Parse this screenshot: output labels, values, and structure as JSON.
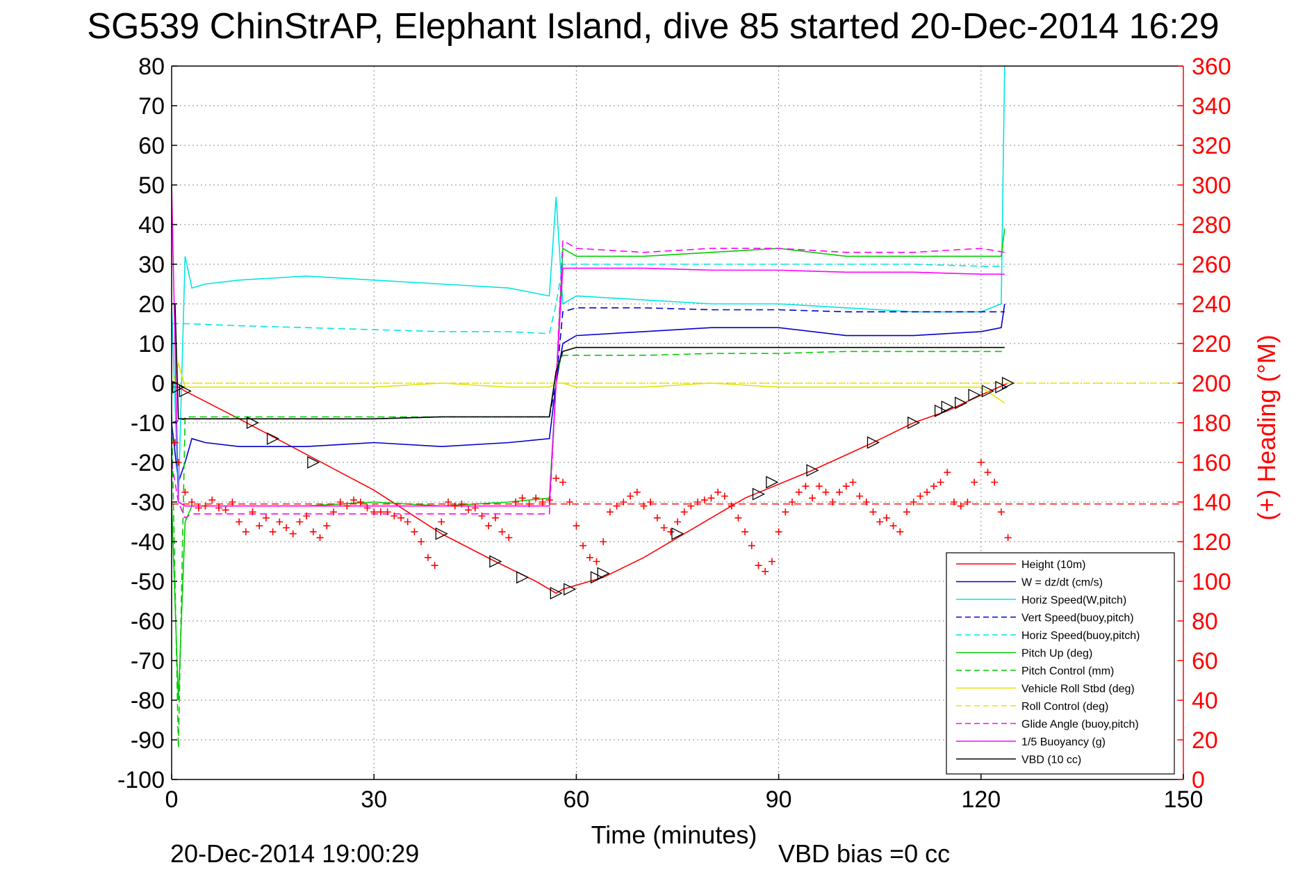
{
  "chart_data": {
    "type": "line",
    "title": "SG539 ChinStrAP, Elephant Island, dive 85 started 20-Dec-2014 16:29",
    "xlabel": "Time (minutes)",
    "ylabel_right": "(+) Heading (°M)",
    "footer_left": "20-Dec-2014 19:00:29",
    "footer_right": "VBD bias =0 cc",
    "xlim": [
      0,
      150
    ],
    "ylim_left": [
      -100,
      80
    ],
    "ylim_right": [
      0,
      360
    ],
    "x_ticks": [
      "0",
      "30",
      "60",
      "90",
      "120",
      "150"
    ],
    "y_ticks_left": [
      "80",
      "70",
      "60",
      "50",
      "40",
      "30",
      "20",
      "10",
      "0",
      "-10",
      "-20",
      "-30",
      "-40",
      "-50",
      "-60",
      "-70",
      "-80",
      "-90",
      "-100"
    ],
    "y_ticks_right": [
      "360",
      "340",
      "320",
      "300",
      "280",
      "260",
      "240",
      "220",
      "200",
      "180",
      "160",
      "140",
      "120",
      "100",
      "80",
      "60",
      "40",
      "20",
      "0"
    ],
    "grid": true,
    "legend_position": "bottom-right",
    "colors": {
      "axis": "#000000",
      "heading_axis": "#ff0000",
      "grid": "#888888"
    },
    "series": [
      {
        "name": "Height (10m)",
        "color": "#ff0000",
        "dash": "solid",
        "x": [
          0,
          1,
          2,
          10,
          20,
          30,
          40,
          48,
          54,
          57,
          58,
          64,
          70,
          76,
          85,
          95,
          104,
          110,
          115,
          120,
          124
        ],
        "y": [
          -1,
          -1,
          -2,
          -9,
          -18,
          -27,
          -38,
          -45,
          -50,
          -53,
          -52,
          -49,
          -44,
          -38,
          -29,
          -22,
          -15,
          -10,
          -7,
          -3,
          0
        ]
      },
      {
        "name": "W = dz/dt (cm/s)",
        "color": "#0000cc",
        "dash": "solid",
        "x": [
          0,
          1,
          2,
          3,
          5,
          10,
          20,
          30,
          40,
          50,
          56,
          57,
          58,
          60,
          70,
          80,
          90,
          100,
          110,
          120,
          123,
          123.5
        ],
        "y": [
          -10,
          -25,
          -20,
          -14,
          -15,
          -16,
          -16,
          -15,
          -16,
          -15,
          -14,
          0,
          10,
          12,
          13,
          14,
          14,
          12,
          12,
          13,
          14,
          20
        ]
      },
      {
        "name": "Horiz Speed(W,pitch)",
        "color": "#00e5e5",
        "dash": "solid",
        "x": [
          0,
          1,
          2,
          3,
          5,
          10,
          20,
          30,
          40,
          50,
          56,
          57,
          58,
          60,
          70,
          80,
          90,
          100,
          110,
          120,
          123,
          123.5
        ],
        "y": [
          20,
          -30,
          32,
          24,
          25,
          26,
          27,
          26,
          25,
          24,
          22,
          47,
          20,
          22,
          21,
          20,
          20,
          19,
          18,
          18,
          20,
          80
        ]
      },
      {
        "name": "Vert Speed(buoy,pitch)",
        "color": "#0000cc",
        "dash": "dashed",
        "x": [
          0,
          2,
          10,
          20,
          30,
          40,
          50,
          56,
          57,
          58,
          60,
          70,
          80,
          90,
          100,
          110,
          120,
          123.5
        ],
        "y": [
          -10,
          -9,
          -9,
          -9,
          -9,
          -8.5,
          -8.5,
          -8.5,
          0,
          18,
          19,
          19,
          18.5,
          18.5,
          18,
          18,
          18,
          18
        ]
      },
      {
        "name": "Horiz Speed(buoy,pitch)",
        "color": "#00e5e5",
        "dash": "dashed",
        "x": [
          0,
          2,
          10,
          20,
          30,
          40,
          50,
          56,
          57,
          58,
          60,
          70,
          80,
          90,
          100,
          110,
          120,
          123.5
        ],
        "y": [
          15,
          15,
          14.5,
          14,
          13.5,
          13,
          13,
          12.5,
          20,
          30,
          30,
          30,
          30,
          30,
          30,
          30,
          29.5,
          29.5
        ]
      },
      {
        "name": "Pitch Up (deg)",
        "color": "#00cc00",
        "dash": "solid",
        "x": [
          0,
          1,
          2,
          3,
          5,
          10,
          20,
          30,
          40,
          50,
          56,
          57,
          58,
          60,
          70,
          80,
          90,
          100,
          110,
          120,
          123,
          123.5
        ],
        "y": [
          -30,
          -80,
          -35,
          -31,
          -31,
          -31,
          -31,
          -30,
          -31,
          -30,
          -29,
          0,
          34,
          32,
          32,
          33,
          34,
          32,
          32,
          32,
          32,
          39
        ]
      },
      {
        "name": "Pitch Control (mm)",
        "color": "#00cc00",
        "dash": "dashed",
        "x": [
          0,
          1,
          2,
          10,
          20,
          30,
          40,
          50,
          56,
          57,
          58,
          60,
          70,
          80,
          90,
          100,
          110,
          120,
          123.5
        ],
        "y": [
          -8,
          -92,
          -8.5,
          -8.5,
          -8.5,
          -8.5,
          -8.5,
          -8.5,
          -8.5,
          3,
          7,
          7,
          7,
          7.5,
          7.5,
          8,
          8,
          8,
          8
        ]
      },
      {
        "name": "Vehicle Roll Stbd (deg)",
        "color": "#e5e500",
        "dash": "solid",
        "x": [
          0,
          1,
          2,
          5,
          10,
          20,
          30,
          40,
          50,
          56,
          57,
          58,
          60,
          70,
          80,
          90,
          100,
          110,
          120,
          123.5
        ],
        "y": [
          -2,
          5,
          -1,
          -1,
          -1,
          -1,
          -1,
          0,
          -1,
          -1,
          0,
          0,
          -1,
          -1,
          0,
          -1,
          -1,
          -1,
          -1,
          -5
        ]
      },
      {
        "name": "Roll Control (deg)",
        "color": "#e5e500",
        "dash": "dashed",
        "x": [
          0,
          150
        ],
        "y": [
          0,
          0
        ]
      },
      {
        "name": "Glide Angle (buoy,pitch)",
        "color": "#ff00ff",
        "dash": "dashed",
        "x": [
          0,
          1,
          2,
          3,
          10,
          20,
          30,
          40,
          50,
          56,
          57,
          58,
          60,
          70,
          80,
          90,
          100,
          110,
          120,
          123.5
        ],
        "y": [
          -20,
          -30,
          -34,
          -33,
          -33,
          -33,
          -33,
          -33,
          -33,
          -33,
          0,
          36,
          34,
          33,
          34,
          34,
          33,
          33,
          34,
          33
        ]
      },
      {
        "name": "1/5 Buoyancy (g)",
        "color": "#ff00ff",
        "dash": "solid",
        "x": [
          0,
          1,
          2,
          5,
          10,
          20,
          30,
          40,
          50,
          56,
          57,
          58,
          60,
          70,
          80,
          90,
          100,
          110,
          120,
          123.5
        ],
        "y": [
          50,
          -30,
          -31,
          -31,
          -31,
          -31,
          -31,
          -31,
          -31,
          -31,
          0,
          29,
          29,
          29,
          28.5,
          28.5,
          28,
          28,
          27.5,
          27.5
        ]
      },
      {
        "name": "VBD (10 cc)",
        "color": "#000000",
        "dash": "solid",
        "x": [
          0,
          0.5,
          1,
          2,
          10,
          20,
          30,
          40,
          50,
          56,
          57,
          58,
          60,
          70,
          80,
          90,
          100,
          110,
          120,
          123.5
        ],
        "y": [
          20,
          20,
          -9,
          -9,
          -9,
          -9,
          -9,
          -8.5,
          -8.5,
          -8.5,
          3,
          8,
          9,
          9,
          9,
          9,
          9,
          9,
          9,
          9
        ]
      }
    ],
    "heading_series": {
      "name": "(+) Heading (°M)",
      "color": "#ff0000",
      "marker": "+",
      "x": [
        0.5,
        1,
        2,
        3,
        4,
        5,
        6,
        7,
        8,
        9,
        10,
        11,
        12,
        13,
        14,
        15,
        16,
        17,
        18,
        19,
        20,
        21,
        22,
        23,
        24,
        25,
        26,
        27,
        28,
        29,
        30,
        31,
        32,
        33,
        34,
        35,
        36,
        37,
        38,
        39,
        40,
        41,
        42,
        43,
        44,
        45,
        46,
        47,
        48,
        49,
        50,
        51,
        52,
        53,
        54,
        55,
        56,
        57,
        58,
        59,
        60,
        61,
        62,
        63,
        64,
        65,
        66,
        67,
        68,
        69,
        70,
        71,
        72,
        73,
        74,
        75,
        76,
        77,
        78,
        79,
        80,
        81,
        82,
        83,
        84,
        85,
        86,
        87,
        88,
        89,
        90,
        91,
        92,
        93,
        94,
        95,
        96,
        97,
        98,
        99,
        100,
        101,
        102,
        103,
        104,
        105,
        106,
        107,
        108,
        109,
        110,
        111,
        112,
        113,
        114,
        115,
        116,
        117,
        118,
        119,
        120,
        121,
        122,
        123,
        124
      ],
      "y": [
        170,
        160,
        145,
        140,
        137,
        138,
        141,
        137,
        136,
        140,
        130,
        125,
        135,
        128,
        132,
        125,
        130,
        127,
        124,
        130,
        133,
        125,
        122,
        128,
        135,
        140,
        138,
        141,
        140,
        137,
        135,
        135,
        135,
        133,
        132,
        130,
        125,
        120,
        112,
        108,
        130,
        140,
        138,
        139,
        136,
        137,
        133,
        128,
        132,
        125,
        122,
        140,
        142,
        139,
        142,
        140,
        141,
        152,
        150,
        140,
        128,
        118,
        112,
        110,
        120,
        135,
        138,
        140,
        143,
        145,
        138,
        140,
        132,
        127,
        125,
        130,
        135,
        138,
        140,
        141,
        142,
        145,
        143,
        138,
        132,
        125,
        118,
        108,
        105,
        110,
        125,
        135,
        140,
        145,
        148,
        142,
        148,
        145,
        140,
        145,
        148,
        150,
        143,
        140,
        135,
        130,
        132,
        128,
        125,
        135,
        140,
        143,
        145,
        148,
        150,
        155,
        140,
        138,
        140,
        150,
        160,
        155,
        150,
        135,
        122
      ]
    },
    "heading_reference": {
      "value": 139,
      "color": "#ff0000",
      "dash": "dashed"
    },
    "depth_markers": {
      "marker": "triangle",
      "x": [
        1,
        2,
        12,
        15,
        21,
        40,
        48,
        52,
        57,
        59,
        63,
        64,
        75,
        87,
        89,
        95,
        104,
        110,
        114,
        115,
        117,
        119,
        121,
        123,
        124
      ],
      "y": [
        -1,
        -2,
        -10,
        -14,
        -20,
        -38,
        -45,
        -49,
        -53,
        -52,
        -49,
        -48,
        -38,
        -28,
        -25,
        -22,
        -15,
        -10,
        -7,
        -6,
        -5,
        -3,
        -2,
        -1,
        0
      ]
    }
  }
}
